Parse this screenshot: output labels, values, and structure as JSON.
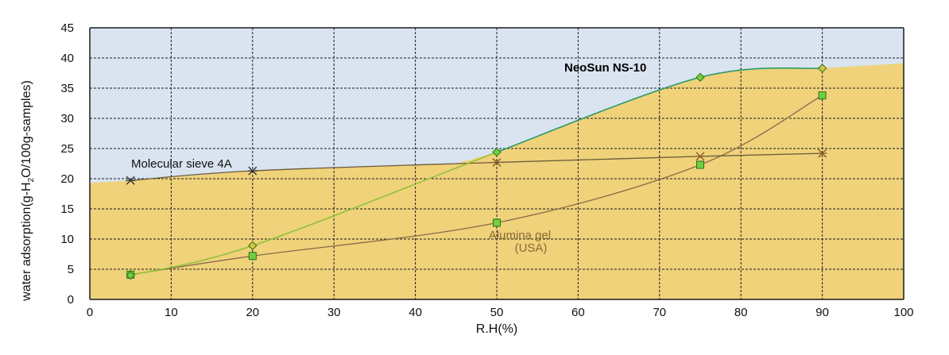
{
  "chart_data": {
    "type": "line",
    "xlabel": "R.H(%)",
    "ylabel": "water adsorption(g-H",
    "ylabel_sub": "2",
    "ylabel_tail": "O/100g-samples)",
    "xlim": [
      0,
      100
    ],
    "ylim": [
      0,
      45
    ],
    "x_ticks": [
      "0",
      "10",
      "20",
      "30",
      "40",
      "50",
      "60",
      "70",
      "80",
      "90",
      "100"
    ],
    "y_ticks": [
      "0",
      "5",
      "10",
      "15",
      "20",
      "25",
      "30",
      "35",
      "40",
      "45"
    ],
    "grid": true,
    "legend": "none",
    "series": [
      {
        "name": "NeoSun NS-10",
        "x": [
          5,
          20,
          50,
          75,
          90
        ],
        "y": [
          4.0,
          8.9,
          24.4,
          36.8,
          38.3
        ]
      },
      {
        "name": "Molecular sieve 4A",
        "x": [
          5,
          20,
          50,
          75,
          90
        ],
        "y": [
          19.7,
          21.3,
          22.7,
          23.7,
          24.2
        ]
      },
      {
        "name": "Alumina gel",
        "x": [
          5,
          20,
          50,
          75,
          90
        ],
        "y": [
          4.1,
          7.2,
          12.7,
          22.3,
          33.8
        ]
      }
    ],
    "annotations": {
      "neosun": "NeoSun NS-10",
      "sieve": "Molecular sieve 4A",
      "alumina_1": "Alumina gel",
      "alumina_2": "(USA)"
    },
    "colors": {
      "plot_background": "#d9e4f0",
      "fill": "#efd27a",
      "grid": "#1c1c1c",
      "neosun_line": "#2e9a6a",
      "neosun_line_low": "#8fc23a",
      "sieve_line": "#6b5a3a",
      "alumina_line": "#8a6a4a",
      "marker_fill": "#6fcf3e",
      "marker_edge": "#2f6e1a",
      "diamond_upper": "#d7c640"
    }
  }
}
